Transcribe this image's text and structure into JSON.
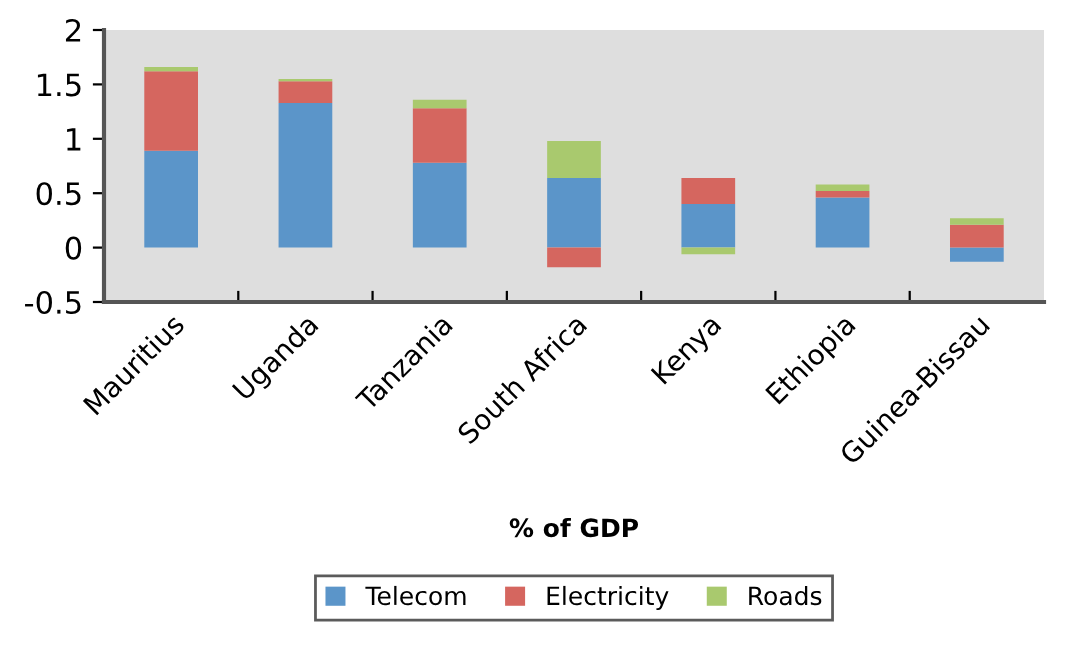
{
  "chart_data": {
    "type": "bar",
    "stacked": true,
    "xlabel": "% of GDP",
    "categories": [
      "Mauritius",
      "Uganda",
      "Tanzania",
      "South Africa",
      "Kenya",
      "Ethiopia",
      "Guinea-Bissau"
    ],
    "series": [
      {
        "name": "Telecom",
        "color": "#5b95c9",
        "values": [
          0.89,
          1.33,
          0.78,
          0.64,
          0.4,
          0.46,
          -0.13
        ]
      },
      {
        "name": "Electricity",
        "color": "#d5665f",
        "values": [
          0.73,
          0.2,
          0.5,
          -0.18,
          0.24,
          0.06,
          0.21
        ]
      },
      {
        "name": "Roads",
        "color": "#a9c96e",
        "values": [
          0.04,
          0.02,
          0.08,
          0.34,
          -0.06,
          0.06,
          0.06
        ]
      }
    ],
    "ylim": [
      -0.5,
      2
    ],
    "yticks": [
      -0.5,
      0,
      0.5,
      1,
      1.5,
      2
    ],
    "grid": false,
    "legend": "bottom"
  }
}
